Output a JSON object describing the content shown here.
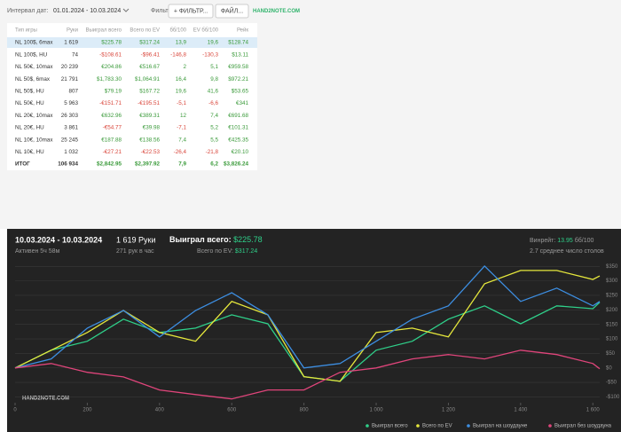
{
  "toolbar": {
    "date_label": "Интервал дат:",
    "date_range": "01.01.2024 - 10.03.2024",
    "filters_label": "Фильтры:",
    "filter_button": "+ ФИЛЬТР...",
    "file_button": "ФАЙЛ...",
    "logo": "HAND2NOTE.COM"
  },
  "table": {
    "columns": [
      "Тип игры",
      "Руки",
      "Выиграл всего",
      "Всего по EV",
      "бб/100",
      "EV бб/100",
      "Рейк"
    ],
    "rows": [
      [
        "NL 100$, 6max",
        "1 619",
        "$225.78",
        "$317.24",
        "13,9",
        "19,6",
        "$128.74"
      ],
      [
        "NL 100$, HU",
        "74",
        "-$108.61",
        "-$96.41",
        "-146,8",
        "-130,3",
        "$13.11"
      ],
      [
        "NL 50€, 10max",
        "20 239",
        "€204.86",
        "€516.67",
        "2",
        "5,1",
        "€959.58"
      ],
      [
        "NL 50$, 6max",
        "21 791",
        "$1,783.30",
        "$1,064.91",
        "16,4",
        "9,8",
        "$972.21"
      ],
      [
        "NL 50$, HU",
        "807",
        "$79.19",
        "$167.72",
        "19,6",
        "41,6",
        "$53.65"
      ],
      [
        "NL 50€, HU",
        "5 963",
        "-€151.71",
        "-€195.51",
        "-5,1",
        "-6,6",
        "€341"
      ],
      [
        "NL 20€, 10max",
        "26 303",
        "€632.96",
        "€389.31",
        "12",
        "7,4",
        "€691.68"
      ],
      [
        "NL 20€, HU",
        "3 861",
        "-€54.77",
        "€39.98",
        "-7,1",
        "5,2",
        "€101.31"
      ],
      [
        "NL 10€, 10max",
        "25 245",
        "€187.88",
        "€138.56",
        "7,4",
        "5,5",
        "€425.35"
      ],
      [
        "NL 10€, HU",
        "1 032",
        "-€27.21",
        "-€22.53",
        "-26,4",
        "-21,8",
        "€20.10"
      ]
    ],
    "total": [
      "ИТОГ",
      "106 934",
      "$2,842.95",
      "$2,397.92",
      "7,9",
      "6,2",
      "$3,826.24"
    ]
  },
  "summary": {
    "period": "10.03.2024 - 10.03.2024",
    "active": "Активен 5ч 58м",
    "hands": "1 619 Руки",
    "hands_per_hour": "271 рук в час",
    "won_label": "Выиграл всего: ",
    "won_value": "$225.78",
    "ev_label": "Всего по EV: ",
    "ev_value": "$317.24",
    "winrate_label": "Винрейт: ",
    "winrate_value": "13.95",
    "winrate_unit": " бб/100",
    "tables": "2.7 среднее число столов"
  },
  "chart_data": {
    "type": "line",
    "x": [
      0,
      100,
      200,
      300,
      400,
      500,
      600,
      700,
      800,
      900,
      1000,
      1100,
      1200,
      1300,
      1400,
      1500,
      1600,
      1619
    ],
    "xlim": [
      0,
      1619
    ],
    "ylim": [
      -120,
      360
    ],
    "xticks": [
      0,
      200,
      400,
      600,
      800,
      {
        "value": 1000,
        "label": "1 000"
      },
      {
        "value": 1200,
        "label": "1 200"
      },
      {
        "value": 1400,
        "label": "1 400"
      },
      {
        "value": 1600,
        "label": "1 600"
      }
    ],
    "yticks": [
      {
        "value": -100,
        "label": "-$100"
      },
      {
        "value": -50,
        "label": "-$50"
      },
      {
        "value": 0,
        "label": "$0"
      },
      {
        "value": 50,
        "label": "$50"
      },
      {
        "value": 100,
        "label": "$100"
      },
      {
        "value": 150,
        "label": "$150"
      },
      {
        "value": 200,
        "label": "$200"
      },
      {
        "value": 250,
        "label": "$250"
      },
      {
        "value": 300,
        "label": "$300"
      },
      {
        "value": 350,
        "label": "$350"
      }
    ],
    "grid": true,
    "series": [
      {
        "name": "Выиграл всего",
        "color": "#2fd08a",
        "values": [
          0,
          61,
          92,
          168,
          122,
          137,
          183,
          152,
          -30,
          -46,
          61,
          92,
          168,
          214,
          152,
          214,
          204,
          226
        ]
      },
      {
        "name": "Всего по EV",
        "color": "#e6e83c",
        "values": [
          0,
          61,
          122,
          198,
          122,
          92,
          229,
          183,
          -30,
          -46,
          122,
          137,
          107,
          290,
          336,
          336,
          305,
          317
        ]
      },
      {
        "name": "Выиграл на шоудауне",
        "color": "#3d8fe3",
        "values": [
          0,
          31,
          137,
          198,
          107,
          198,
          259,
          183,
          0,
          15,
          92,
          168,
          214,
          351,
          229,
          275,
          214,
          229
        ]
      },
      {
        "name": "Выиграл без шоудауна",
        "color": "#e0457b",
        "values": [
          0,
          15,
          -15,
          -31,
          -76,
          -92,
          -107,
          -76,
          -76,
          -15,
          0,
          31,
          46,
          31,
          61,
          46,
          15,
          -3
        ]
      }
    ]
  }
}
